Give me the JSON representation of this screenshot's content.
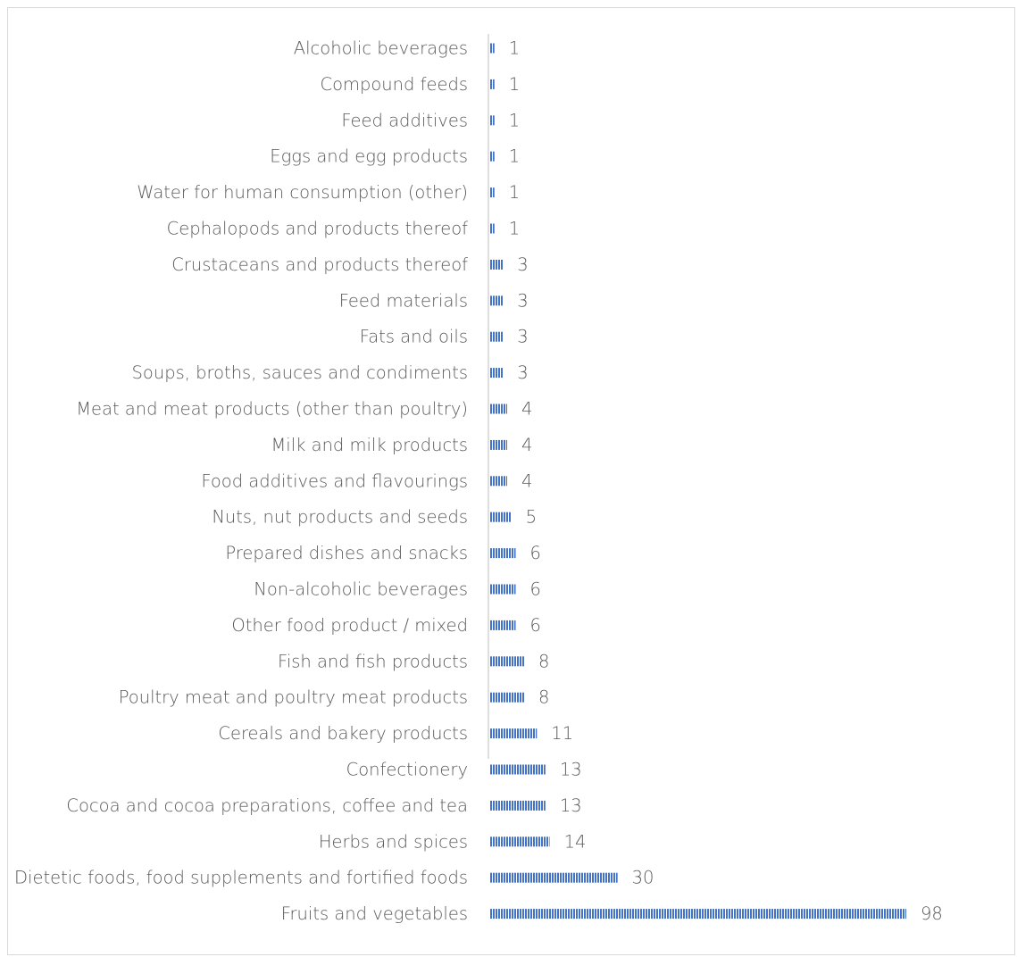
{
  "chart_data": {
    "type": "bar",
    "orientation": "horizontal",
    "title": "",
    "xlabel": "",
    "ylabel": "",
    "categories": [
      "Alcoholic beverages",
      "Compound feeds",
      "Feed additives",
      "Eggs and egg products",
      "Water for human consumption (other)",
      "Cephalopods and products thereof",
      "Crustaceans and products thereof",
      "Feed materials",
      "Fats and oils",
      "Soups, broths, sauces and condiments",
      "Meat and meat products (other than poultry)",
      "Milk and milk products",
      "Food additives and flavourings",
      "Nuts, nut products and seeds",
      "Prepared dishes and snacks",
      "Non-alcoholic beverages",
      "Other food product / mixed",
      "Fish and fish products",
      "Poultry meat and poultry meat products",
      "Cereals and bakery products",
      "Confectionery",
      "Cocoa and cocoa preparations, coffee and tea",
      "Herbs and spices",
      "Dietetic foods, food supplements and fortified foods",
      "Fruits and vegetables"
    ],
    "values": [
      1,
      1,
      1,
      1,
      1,
      1,
      3,
      3,
      3,
      3,
      4,
      4,
      4,
      5,
      6,
      6,
      6,
      8,
      8,
      11,
      13,
      13,
      14,
      30,
      98
    ],
    "xlim": [
      0,
      98
    ],
    "data_labels": true,
    "grid": false,
    "legend": "none",
    "colors": {
      "bar": "#4472c4",
      "bar_stripe": "#ffffff",
      "axis": "#bfbfbf",
      "text": "#595959"
    }
  }
}
